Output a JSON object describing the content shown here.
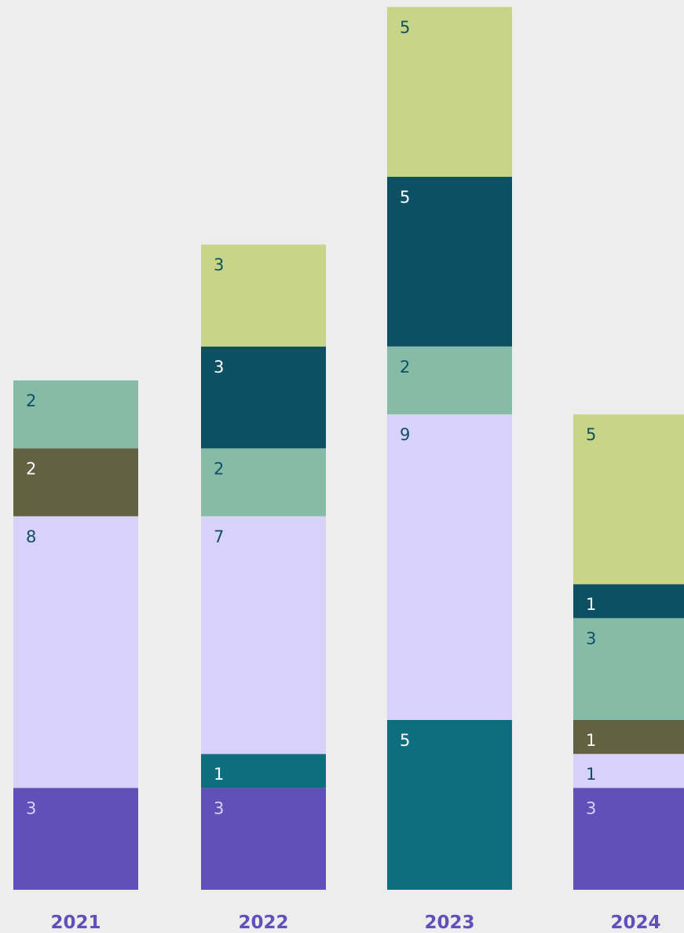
{
  "chart_data": {
    "type": "bar",
    "stacked": true,
    "categories": [
      "2021",
      "2022",
      "2023",
      "2024"
    ],
    "series": [
      {
        "color": "#6050b8",
        "label_color": "#d9d2fa",
        "values": [
          3,
          3,
          null,
          3
        ]
      },
      {
        "color": "#0e6e7e",
        "label_color": "#ffffff",
        "values": [
          null,
          1,
          5,
          null
        ]
      },
      {
        "color": "#d8d1fa",
        "label_color": "#0f4f63",
        "values": [
          8,
          7,
          9,
          1
        ]
      },
      {
        "color": "#626141",
        "label_color": "#ffffff",
        "values": [
          2,
          null,
          null,
          1
        ]
      },
      {
        "color": "#86bca7",
        "label_color": "#0f4f63",
        "values": [
          2,
          2,
          2,
          3
        ]
      },
      {
        "color": "#0e5063",
        "label_color": "#ffffff",
        "values": [
          null,
          3,
          5,
          1
        ]
      },
      {
        "color": "#c8d588",
        "label_color": "#0f4f63",
        "values": [
          null,
          3,
          5,
          5
        ]
      }
    ],
    "category_label_color": "#6050b8",
    "background": "#ededed",
    "legend": "none",
    "grid": false,
    "axes_visible": false
  }
}
